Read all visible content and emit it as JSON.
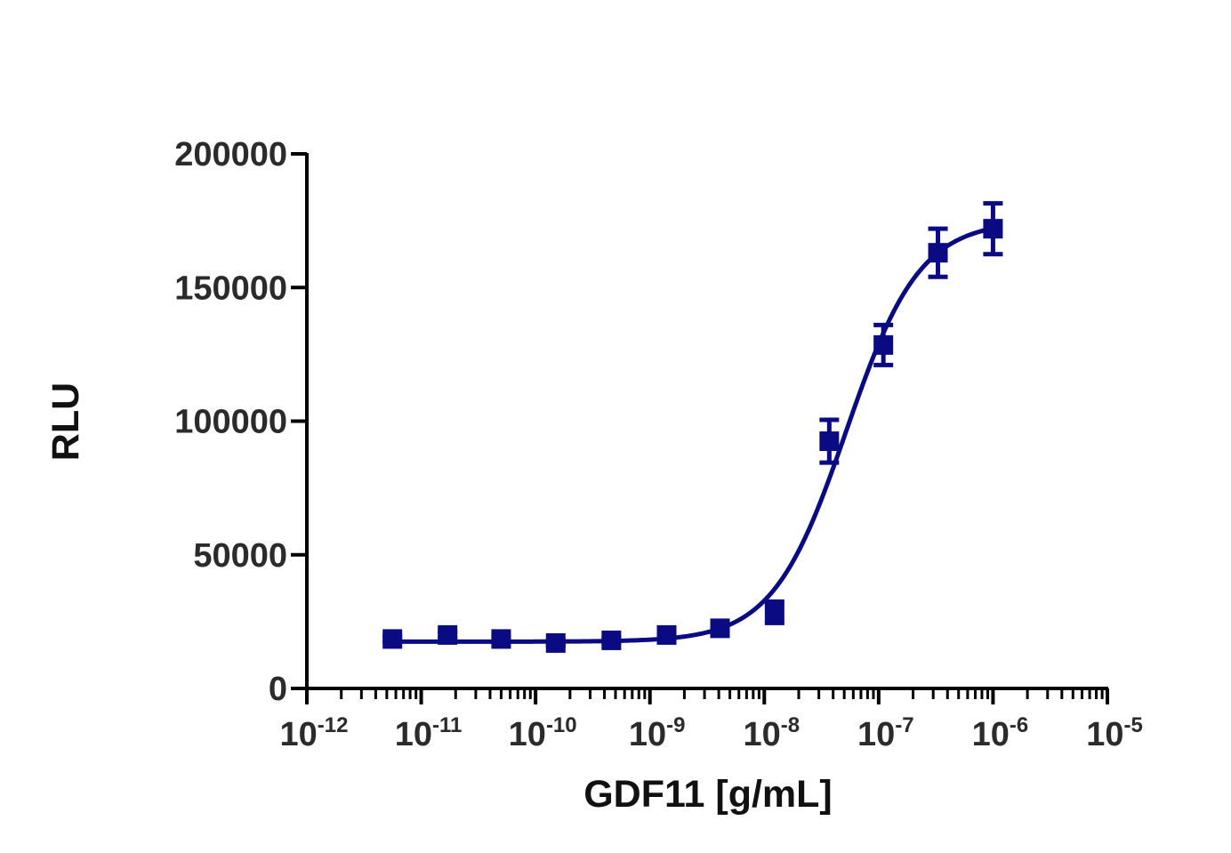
{
  "chart_data": {
    "type": "scatter",
    "title": "",
    "xlabel": "GDF11 [g/mL]",
    "ylabel": "RLU",
    "xscale": "log",
    "xlim": [
      1e-12,
      1e-05
    ],
    "ylim": [
      0,
      200000
    ],
    "grid": false,
    "legend": "none",
    "y_ticks": [
      0,
      50000,
      100000,
      150000,
      200000
    ],
    "y_tick_labels": [
      "0",
      "50000",
      "100000",
      "150000",
      "200000"
    ],
    "x_ticks": [
      {
        "value": 1e-12,
        "base": "10",
        "exp": "-12"
      },
      {
        "value": 1e-11,
        "base": "10",
        "exp": "-11"
      },
      {
        "value": 1e-10,
        "base": "10",
        "exp": "-10"
      },
      {
        "value": 1e-09,
        "base": "10",
        "exp": "-9"
      },
      {
        "value": 1e-08,
        "base": "10",
        "exp": "-8"
      },
      {
        "value": 1e-07,
        "base": "10",
        "exp": "-7"
      },
      {
        "value": 1e-06,
        "base": "10",
        "exp": "-6"
      },
      {
        "value": 1e-05,
        "base": "10",
        "exp": "-5"
      }
    ],
    "series": [
      {
        "name": "GDF11",
        "color": "#0a0a82",
        "marker": "square",
        "x": [
          5.6e-12,
          1.7e-11,
          5e-11,
          1.5e-10,
          4.6e-10,
          1.4e-09,
          4.1e-09,
          1.23e-08,
          3.7e-08,
          1.1e-07,
          3.3e-07,
          1e-06
        ],
        "y": [
          18500,
          20000,
          18500,
          17000,
          18000,
          20000,
          22500,
          28500,
          92500,
          128500,
          163000,
          172000
        ],
        "error": [
          1000,
          1200,
          1000,
          1000,
          1000,
          1000,
          1200,
          4000,
          8000,
          7500,
          9000,
          9500
        ]
      }
    ],
    "fit": {
      "model": "4PL",
      "bottom": 17500,
      "top": 175000,
      "ec50": 5.2e-08,
      "hill": 1.35,
      "color": "#0a0a82"
    }
  }
}
